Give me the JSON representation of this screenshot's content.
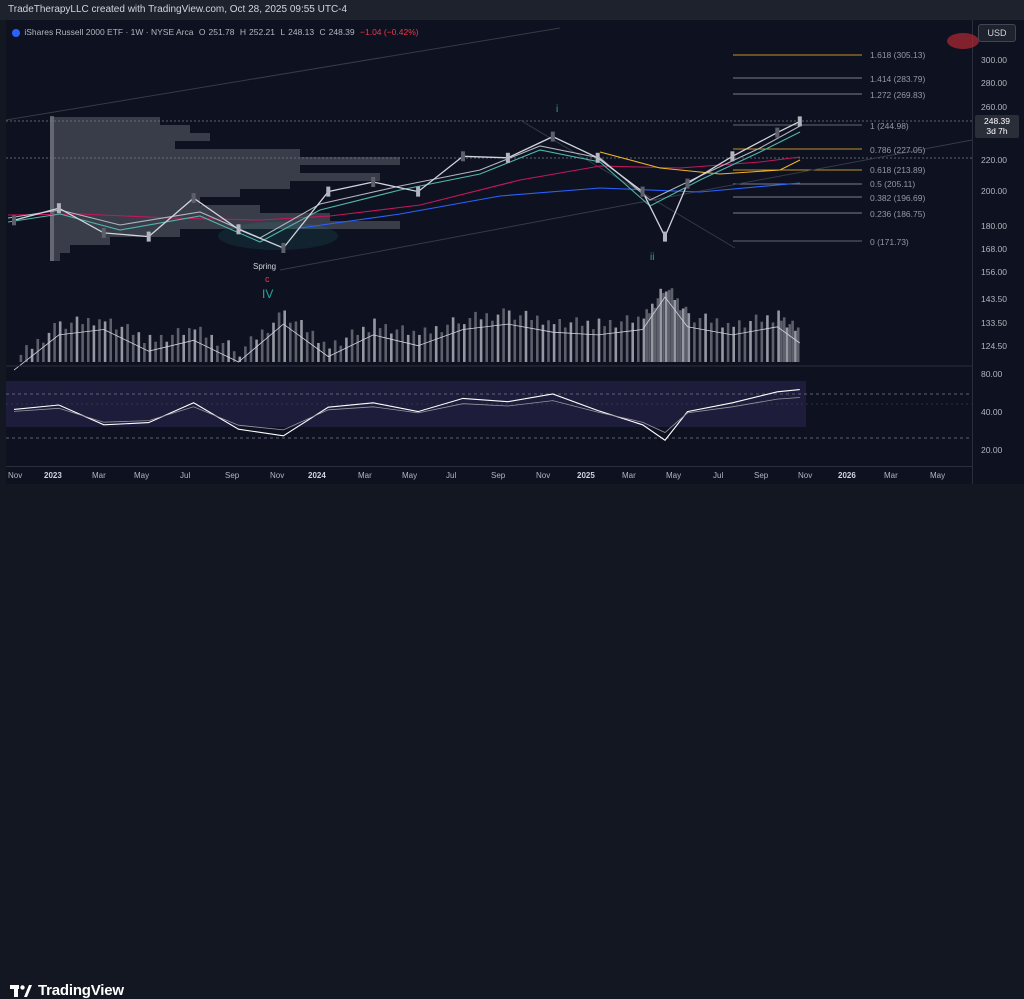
{
  "header": {
    "credit": "TradeTherapyLLC created with TradingView.com, Oct 28, 2025 09:55 UTC-4"
  },
  "legend": {
    "symbol": "iShares Russell 2000 ETF · 1W · NYSE Arca",
    "o_label": "O",
    "o_value": "251.78",
    "h_label": "H",
    "h_value": "252.21",
    "l_label": "L",
    "l_value": "248.13",
    "c_label": "C",
    "c_value": "248.39",
    "change": "−1.04 (−0.42%)"
  },
  "currency_button": "USD",
  "last_price": {
    "value": "248.39",
    "countdown": "3d 7h"
  },
  "wave_labels": {
    "spring": "Spring",
    "c": "c",
    "iv": "IV",
    "i": "i",
    "ii": "ii"
  },
  "fib_levels": [
    {
      "label": "1.618 (305.13)",
      "color": "#f0b429"
    },
    {
      "label": "1.414 (283.79)",
      "color": "#9598a1"
    },
    {
      "label": "1.272 (269.83)",
      "color": "#9598a1"
    },
    {
      "label": "1 (244.98)",
      "color": "#787b86"
    },
    {
      "label": "0.786 (227.05)",
      "color": "#f0b429"
    },
    {
      "label": "0.618 (213.89)",
      "color": "#f0b429"
    },
    {
      "label": "0.5 (205.11)",
      "color": "#9598a1"
    },
    {
      "label": "0.382 (196.69)",
      "color": "#9598a1"
    },
    {
      "label": "0.236 (186.75)",
      "color": "#9598a1"
    },
    {
      "label": "0 (171.73)",
      "color": "#787b86"
    }
  ],
  "price_axis_ticks": [
    "300.00",
    "280.00",
    "260.00",
    "220.00",
    "200.00",
    "180.00",
    "168.00",
    "156.00",
    "143.50",
    "133.50",
    "124.50"
  ],
  "rsi_axis_ticks": [
    "80.00",
    "40.00",
    "20.00"
  ],
  "time_axis_ticks": [
    {
      "label": "Nov",
      "year": false
    },
    {
      "label": "2023",
      "year": true
    },
    {
      "label": "Mar",
      "year": false
    },
    {
      "label": "May",
      "year": false
    },
    {
      "label": "Jul",
      "year": false
    },
    {
      "label": "Sep",
      "year": false
    },
    {
      "label": "Nov",
      "year": false
    },
    {
      "label": "2024",
      "year": true
    },
    {
      "label": "Mar",
      "year": false
    },
    {
      "label": "May",
      "year": false
    },
    {
      "label": "Jul",
      "year": false
    },
    {
      "label": "Sep",
      "year": false
    },
    {
      "label": "Nov",
      "year": false
    },
    {
      "label": "2025",
      "year": true
    },
    {
      "label": "Mar",
      "year": false
    },
    {
      "label": "May",
      "year": false
    },
    {
      "label": "Jul",
      "year": false
    },
    {
      "label": "Sep",
      "year": false
    },
    {
      "label": "Nov",
      "year": false
    },
    {
      "label": "2026",
      "year": true
    },
    {
      "label": "Mar",
      "year": false
    },
    {
      "label": "May",
      "year": false
    }
  ],
  "footer": {
    "brand": "TradingView"
  },
  "chart_data": {
    "type": "line",
    "title": "",
    "xlabel": "",
    "ylabel": "",
    "ylim": [
      150,
      310
    ],
    "x": [
      "2022-11",
      "2023-01",
      "2023-03",
      "2023-05",
      "2023-07",
      "2023-09",
      "2023-11",
      "2024-01",
      "2024-03",
      "2024-05",
      "2024-07",
      "2024-09",
      "2024-11",
      "2025-01",
      "2025-03",
      "2025-04",
      "2025-05",
      "2025-07",
      "2025-09",
      "2025-10"
    ],
    "series": [
      {
        "values": [
          183,
          190,
          176,
          174,
          196,
          178,
          168,
          200,
          206,
          200,
          223,
          222,
          237,
          222,
          200,
          174,
          205,
          223,
          240,
          248.39
        ]
      }
    ],
    "volume": [
      125,
      138,
      140,
      132,
      136,
      128,
      142,
      130,
      138,
      134,
      140,
      142,
      139,
      138,
      140,
      152,
      141,
      138,
      141,
      135
    ],
    "rsi": [
      56,
      60,
      42,
      44,
      62,
      38,
      32,
      58,
      62,
      54,
      66,
      63,
      70,
      55,
      42,
      28,
      54,
      62,
      72,
      74
    ],
    "rsi_ylim": [
      10,
      90
    ],
    "rsi_bands": [
      70,
      30
    ],
    "grid": false,
    "legend": "none"
  }
}
